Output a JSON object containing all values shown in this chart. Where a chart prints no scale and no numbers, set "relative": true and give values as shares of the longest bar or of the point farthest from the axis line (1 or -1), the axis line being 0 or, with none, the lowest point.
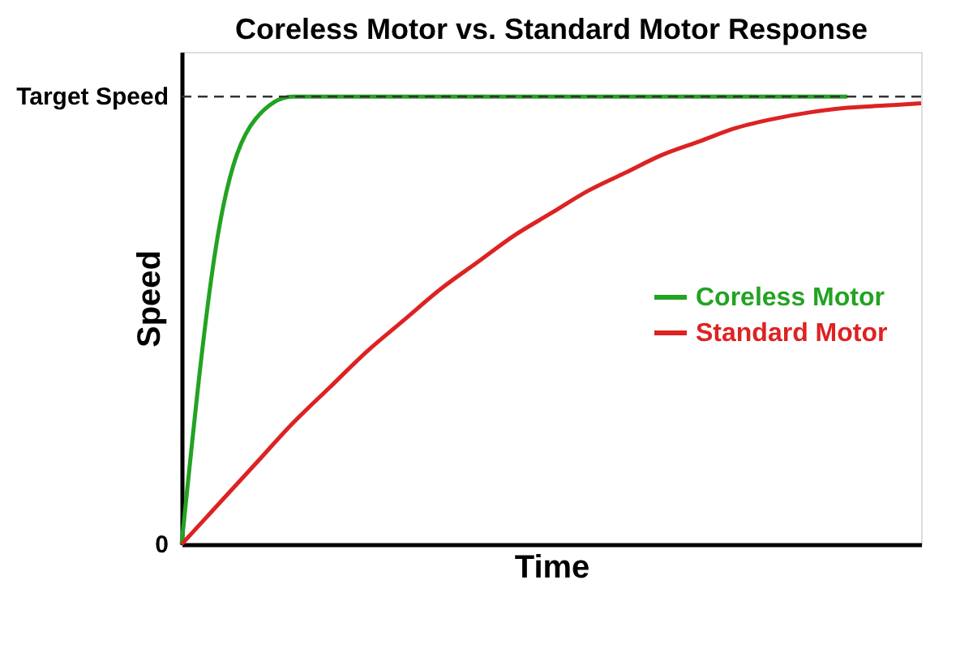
{
  "chart_data": {
    "type": "line",
    "title": "Coreless Motor vs. Standard Motor Response",
    "xlabel": "Time",
    "ylabel": "Speed",
    "categories": [
      null,
      null,
      null,
      null,
      null,
      null,
      null,
      null,
      null,
      null,
      null,
      null,
      null,
      null,
      null,
      null,
      null,
      null,
      null,
      null,
      null
    ],
    "series": [
      {
        "name": "Coreless Motor",
        "color": "#22a322",
        "values": [
          0,
          0.7,
          0.95,
          1,
          1,
          1,
          1,
          1,
          1,
          1,
          1,
          1,
          1,
          1,
          1,
          1,
          1,
          1,
          1,
          null,
          null
        ]
      },
      {
        "name": "Standard Motor",
        "color": "#dd2222",
        "values": [
          0,
          0.09,
          0.18,
          0.27,
          0.35,
          0.43,
          0.5,
          0.57,
          0.63,
          0.69,
          0.74,
          0.79,
          0.83,
          0.87,
          0.9,
          0.93,
          0.95,
          0.965,
          0.975,
          0.98,
          0.985
        ]
      }
    ],
    "relative": true,
    "ref_lines": [
      {
        "axis": "y",
        "value": 1,
        "label": "Target Speed",
        "color": "#333333",
        "line_style": "dashed"
      }
    ],
    "annotations": [
      "0"
    ],
    "legend": "right",
    "marker": "none",
    "line_style": "solid"
  }
}
